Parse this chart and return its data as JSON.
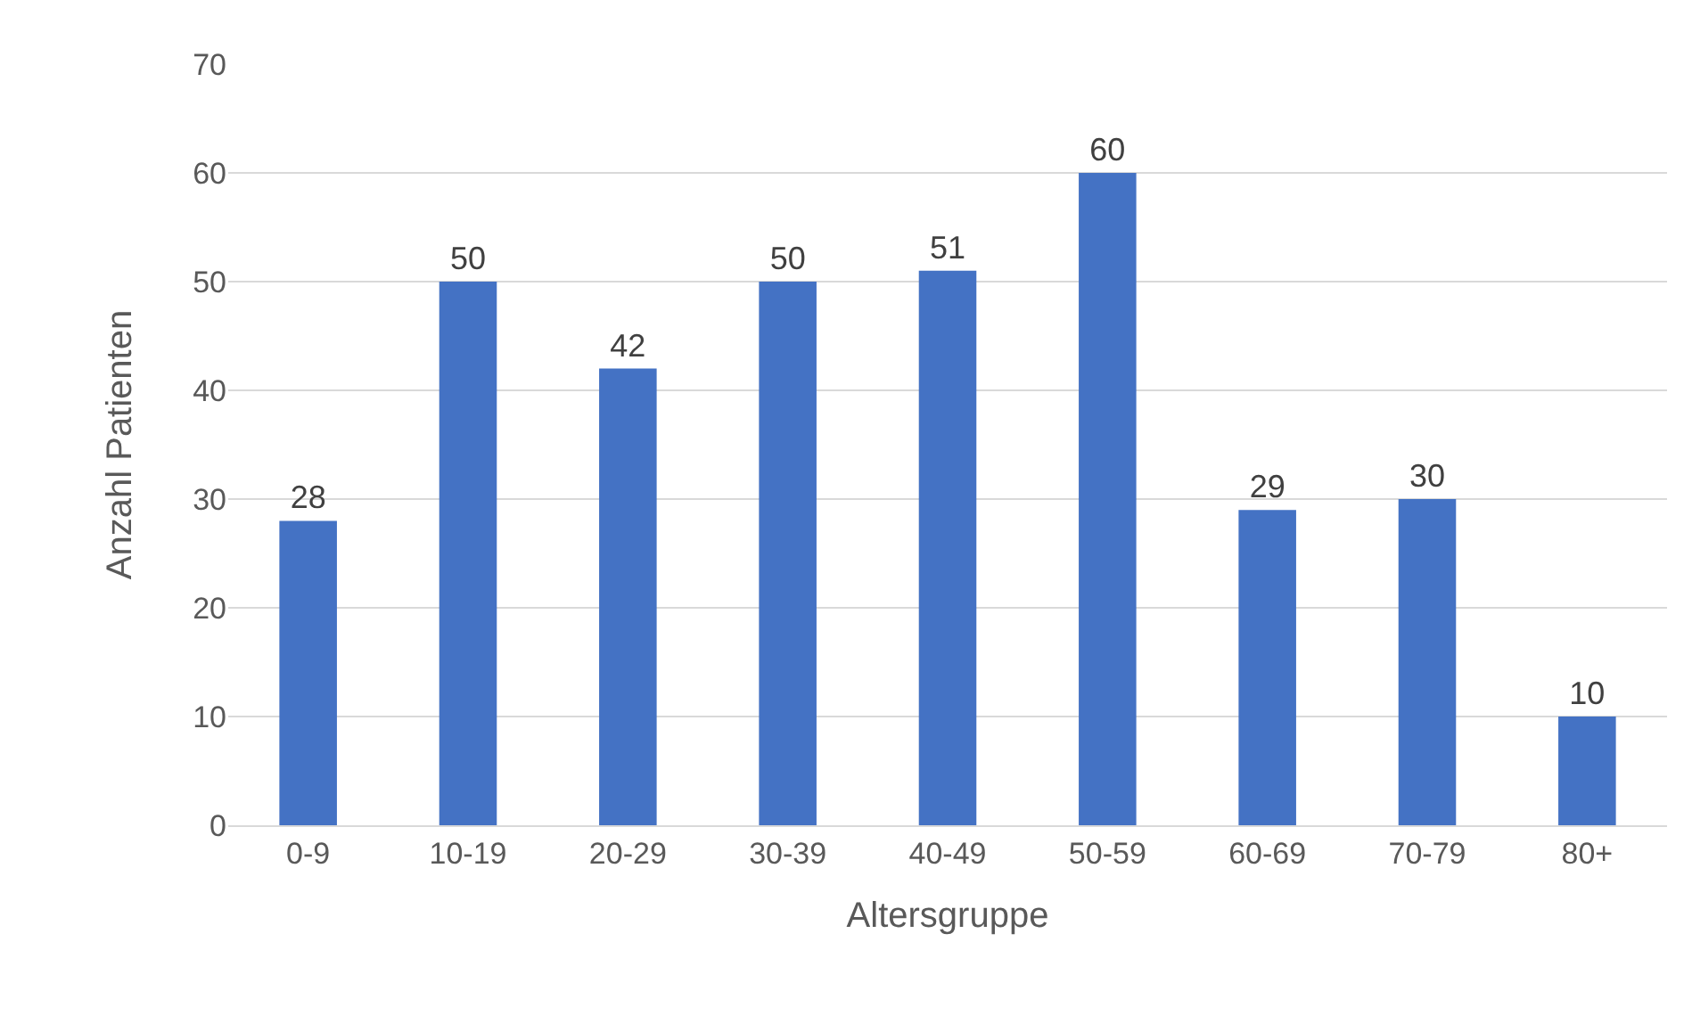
{
  "chart_data": {
    "type": "bar",
    "xlabel": "Altersgruppe",
    "ylabel": "Anzahl Patienten",
    "categories": [
      "0-9",
      "10-19",
      "20-29",
      "30-39",
      "40-49",
      "50-59",
      "60-69",
      "70-79",
      "80+"
    ],
    "values": [
      28,
      50,
      42,
      50,
      51,
      60,
      29,
      30,
      10
    ],
    "color": "#4472c4",
    "ylim": [
      0,
      70
    ],
    "yticks": [
      0,
      10,
      20,
      30,
      40,
      50,
      60,
      70
    ],
    "grid": "y",
    "data_labels": true
  }
}
